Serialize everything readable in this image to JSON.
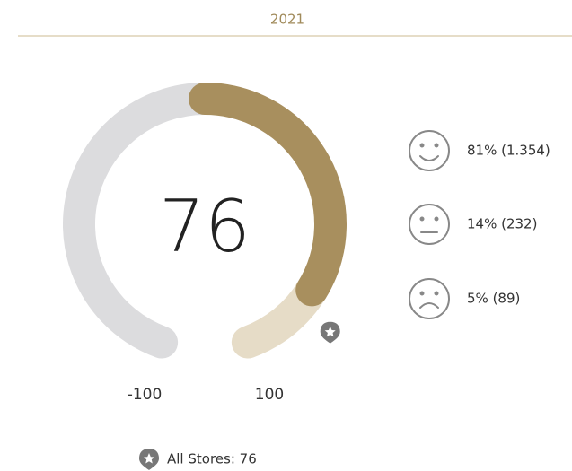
{
  "chart_data": {
    "type": "gauge",
    "title": "2021",
    "value": 76,
    "ylim": [
      -100,
      100
    ],
    "colors": {
      "negative": "#dcdcde",
      "value": "#a88f5e",
      "rest": "#e6dcc7"
    },
    "benchmark": {
      "value": 76,
      "label": "All Stores: 76"
    },
    "breakdown": [
      "81% (1.354)",
      "14% (232)",
      "5% (89)"
    ]
  }
}
